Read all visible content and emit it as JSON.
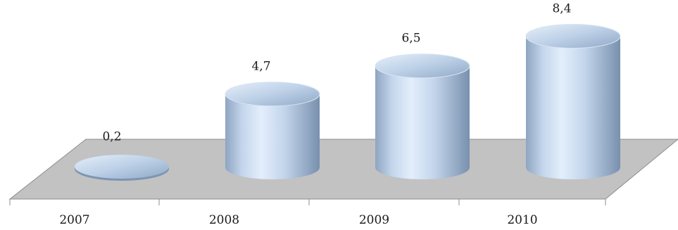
{
  "chart_data": {
    "type": "bar",
    "style": "3d-cylinder",
    "categories": [
      "2007",
      "2008",
      "2009",
      "2010"
    ],
    "values": [
      0.2,
      4.7,
      6.5,
      8.4
    ],
    "value_labels": [
      "0,2",
      "4,7",
      "6,5",
      "8,4"
    ],
    "title": "",
    "xlabel": "",
    "ylabel": "",
    "ylim": [
      0,
      9
    ],
    "grid": false,
    "legend": "none",
    "colors": {
      "bar_light": "#dde9f7",
      "bar_mid": "#aec4dd",
      "bar_dark": "#7f97b4",
      "floor": "#c2c2c2",
      "floor_edge": "#8c8c8c",
      "text": "#1a1a1a"
    }
  }
}
